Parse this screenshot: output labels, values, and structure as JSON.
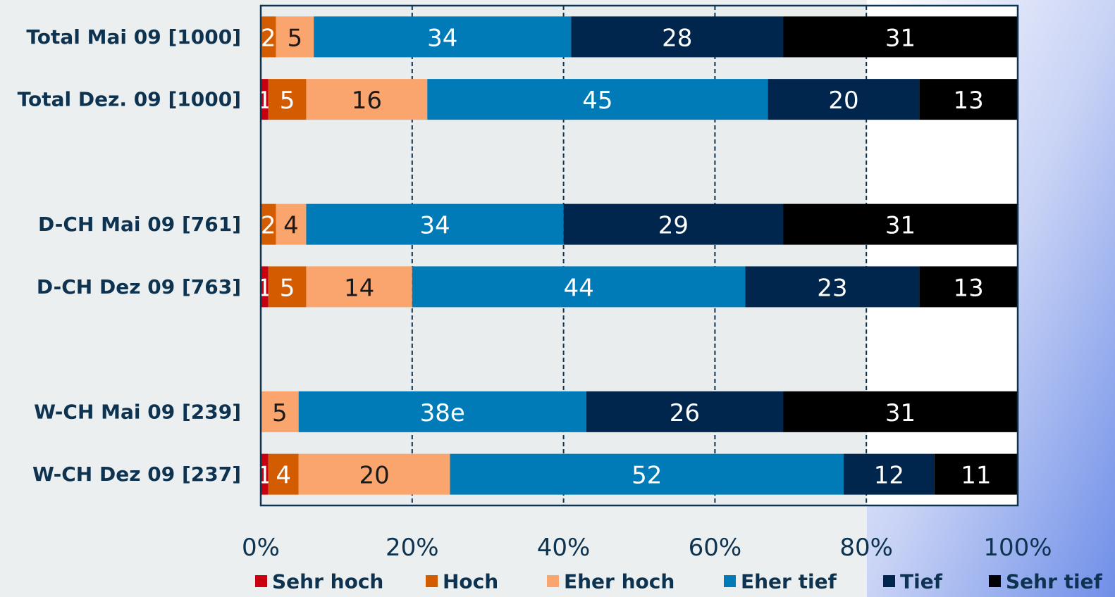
{
  "chart_data": {
    "type": "stacked-barh",
    "categories": [
      "Total Mai 09 [1000]",
      "Total Dez. 09 [1000]",
      null,
      "D-CH Mai 09 [761]",
      "D-CH Dez 09 [763]",
      null,
      "W-CH Mai 09 [239]",
      "W-CH Dez 09 [237]"
    ],
    "series": [
      {
        "name": "Sehr hoch",
        "color": "#c8000f",
        "values": [
          null,
          1,
          null,
          null,
          1,
          null,
          null,
          1
        ]
      },
      {
        "name": "Hoch",
        "color": "#d45c00",
        "values": [
          2,
          5,
          null,
          2,
          5,
          null,
          null,
          4
        ]
      },
      {
        "name": "Eher hoch",
        "color": "#f9a56d",
        "values": [
          5,
          16,
          null,
          4,
          14,
          null,
          5,
          20
        ]
      },
      {
        "name": "Eher tief",
        "color": "#007bb8",
        "values": [
          34,
          45,
          null,
          34,
          44,
          null,
          38,
          52
        ],
        "value_labels": [
          null,
          null,
          null,
          null,
          null,
          null,
          "38e",
          null
        ]
      },
      {
        "name": "Tief",
        "color": "#00264d",
        "values": [
          28,
          20,
          null,
          29,
          23,
          null,
          26,
          12
        ]
      },
      {
        "name": "Sehr tief",
        "color": "#000000",
        "values": [
          31,
          13,
          null,
          31,
          13,
          null,
          31,
          11
        ]
      }
    ],
    "xlim": [
      0,
      100
    ],
    "xticks": [
      {
        "value": 0,
        "label": "0%"
      },
      {
        "value": 20,
        "label": "20%"
      },
      {
        "value": 40,
        "label": "40%"
      },
      {
        "value": 60,
        "label": "60%"
      },
      {
        "value": 80,
        "label": "80%"
      },
      {
        "value": 100,
        "label": "100%"
      }
    ],
    "grid": true,
    "legend": "bottom"
  }
}
